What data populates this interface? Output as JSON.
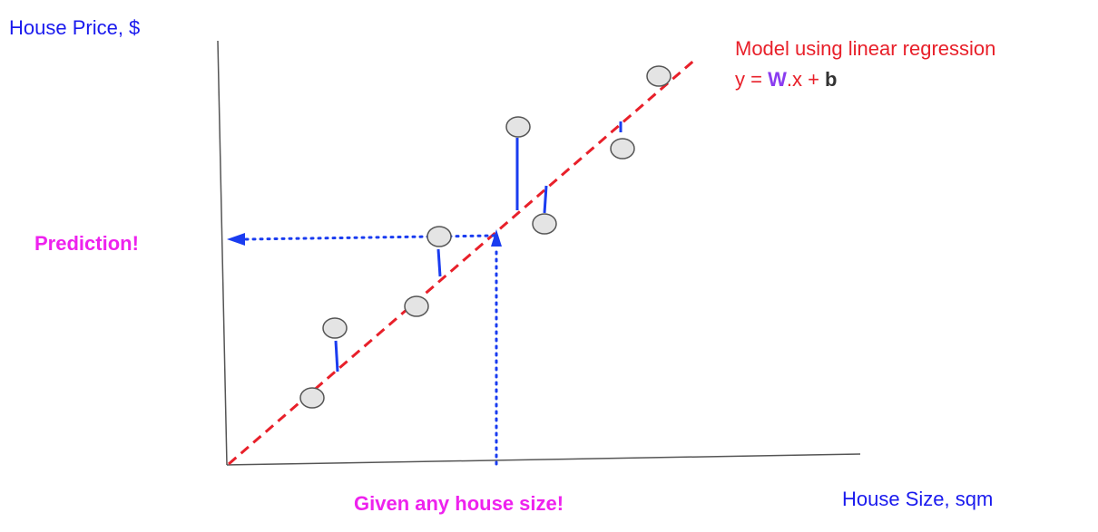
{
  "labels": {
    "y_axis": "House Price, $",
    "x_axis": "House Size, sqm",
    "model_title": "Model using linear regression",
    "formula_y": "y = ",
    "formula_w": "W",
    "formula_mid": ".x + ",
    "formula_b": "b",
    "prediction": "Prediction!",
    "given": "Given any house size!"
  },
  "colors": {
    "axis": "#555555",
    "label_blue": "#1a1aee",
    "regression_line": "#e8202a",
    "residual": "#1a3cf0",
    "guide_dotted": "#1a3cf0",
    "highlight_magenta": "#ee22ee",
    "weight_purple": "#8a3cf0",
    "bias_dark": "#333333",
    "point_fill": "#e4e4e4",
    "point_stroke": "#555555"
  }
}
